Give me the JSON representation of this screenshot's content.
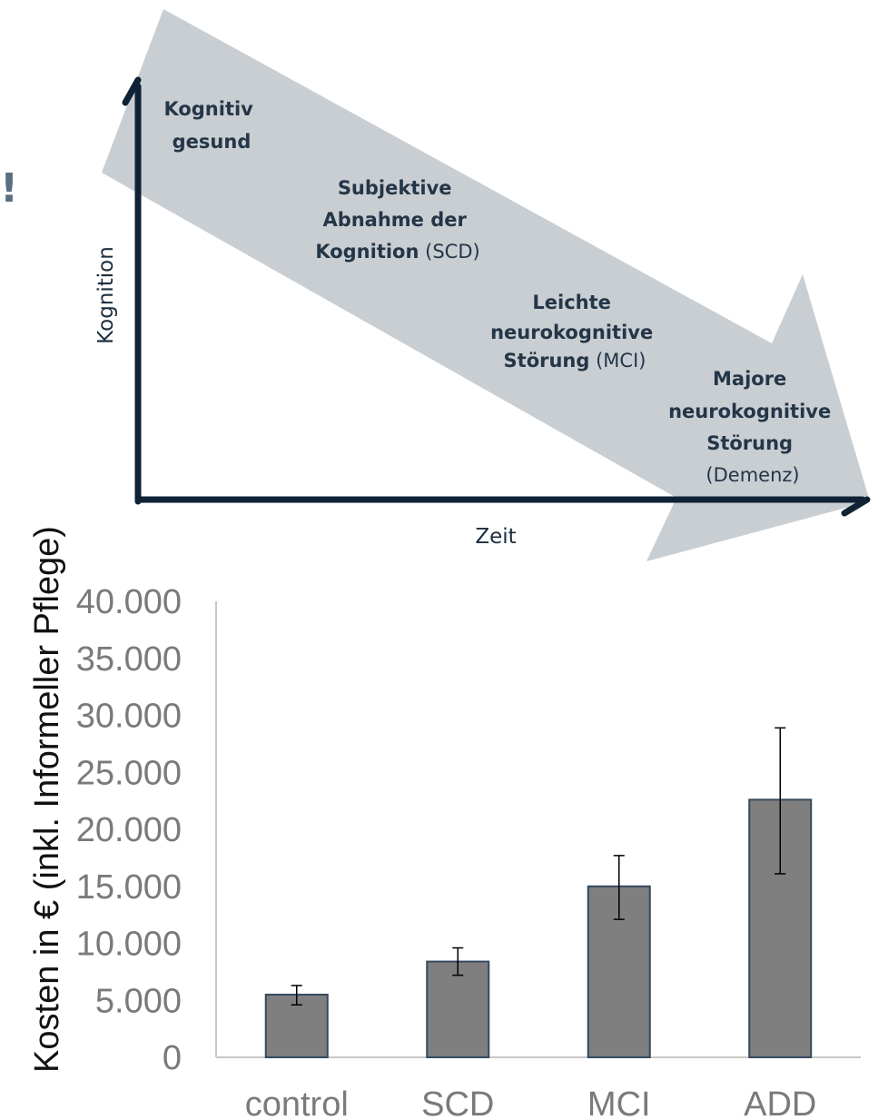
{
  "diagram": {
    "exclamation": "!",
    "y_axis_label": "Kognition",
    "x_axis_label": "Zeit",
    "stages": [
      {
        "lines": [
          {
            "bold": "Kognitiv",
            "normal": ""
          },
          {
            "bold": "gesund",
            "normal": ""
          }
        ]
      },
      {
        "lines": [
          {
            "bold": "Subjektive",
            "normal": ""
          },
          {
            "bold": "Abnahme der",
            "normal": ""
          },
          {
            "bold": "Kognition",
            "normal": " (SCD)"
          }
        ]
      },
      {
        "lines": [
          {
            "bold": "Leichte",
            "normal": ""
          },
          {
            "bold": "neurokognitive",
            "normal": ""
          },
          {
            "bold": "Störung",
            "normal": " (MCI)"
          }
        ]
      },
      {
        "lines": [
          {
            "bold": "Majore",
            "normal": ""
          },
          {
            "bold": "neurokognitive",
            "normal": ""
          },
          {
            "bold": "Störung",
            "normal": ""
          },
          {
            "bold": "",
            "normal": "(Demenz)"
          }
        ]
      }
    ],
    "colors": {
      "arrow": "#c9ced3",
      "axis": "#0f2236",
      "text": "#243647"
    }
  },
  "chart_data": {
    "type": "bar",
    "categories": [
      "control",
      "SCD",
      "MCI",
      "ADD"
    ],
    "values": [
      5500,
      8400,
      15000,
      22600
    ],
    "error_low": [
      4600,
      7200,
      12100,
      16100
    ],
    "error_high": [
      6300,
      9600,
      17700,
      28900
    ],
    "ylabel": "Kosten in € (inkl. Informeller Pflege)",
    "xlabel": "",
    "ylim": [
      0,
      40000
    ],
    "yticks": [
      0,
      5000,
      10000,
      15000,
      20000,
      25000,
      30000,
      35000,
      40000
    ],
    "ytick_labels": [
      "0",
      "5.000",
      "10.000",
      "15.000",
      "20.000",
      "25.000",
      "30.000",
      "35.000",
      "40.000"
    ],
    "grid": false,
    "colors": {
      "bar": "#7f7f7f",
      "bar_edge": "#34495e",
      "error": "#000000",
      "axis": "#c8c8c8"
    }
  }
}
